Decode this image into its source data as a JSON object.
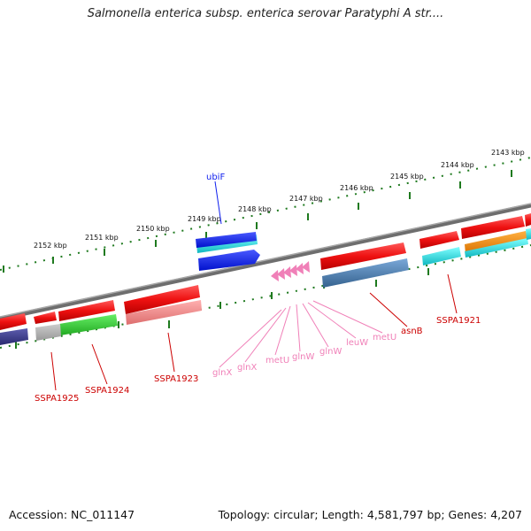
{
  "title": "Salmonella enterica subsp. enterica serovar Paratyphi A str....",
  "footer": {
    "accession": "Accession: NC_011147",
    "summary": "Topology: circular; Length: 4,581,797 bp; Genes: 4,207"
  },
  "ruler": {
    "unit": "kbp",
    "ticks": [
      {
        "label": "2143 kbp"
      },
      {
        "label": "2144 kbp"
      },
      {
        "label": "2145 kbp"
      },
      {
        "label": "2146 kbp"
      },
      {
        "label": "2147 kbp"
      },
      {
        "label": "2148 kbp"
      },
      {
        "label": "2149 kbp"
      },
      {
        "label": "2150 kbp"
      },
      {
        "label": "2151 kbp"
      },
      {
        "label": "2152 kbp"
      }
    ]
  },
  "labels": {
    "ubiF": "ubiF",
    "asnB": "asnB",
    "SSPA1921": "SSPA1921",
    "SSPA1923": "SSPA1923",
    "SSPA1924": "SSPA1924",
    "SSPA1925": "SSPA1925",
    "glnX_1": "glnX",
    "glnX_2": "glnX",
    "metU_1": "metU",
    "glnW_1": "glnW",
    "glnW_2": "glnW",
    "leuW": "leuW",
    "metU_2": "metU"
  },
  "colors": {
    "cds": "#ee1111",
    "trna": "#f080b8",
    "backbone": "#808080",
    "ruler": "#1f7a1f",
    "gc_cyan": "#20c0c8",
    "steelblue": "#4a7fb5",
    "blue": "#1020ee",
    "green": "#33cc33",
    "orange": "#f08c00",
    "navy": "#3b3b8a",
    "salmon": "#ee8a8a",
    "grey": "#a8a8a8"
  }
}
